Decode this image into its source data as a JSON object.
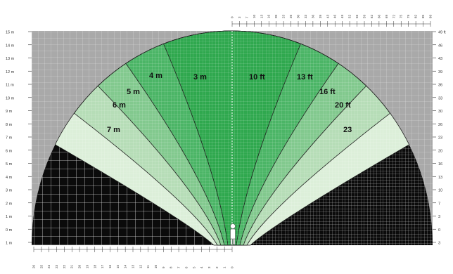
{
  "colors": {
    "background": "#ffffff",
    "panel_gray": "#a9a9a9",
    "black_zone": "#0b0b0b",
    "zone_green_center": "#2fa84e",
    "zone_green_1": "#4bb566",
    "zone_green_2": "#82c98e",
    "zone_green_3": "#b6ddb7",
    "zone_green_4": "#dcefd9",
    "outline": "#1a1a1a",
    "person": "#ffffff"
  },
  "metric_labels": [
    "3 m",
    "4 m",
    "5 m",
    "6 m",
    "7 m"
  ],
  "imperial_labels": [
    "10 ft",
    "13 ft",
    "16 ft",
    "20 ft",
    "23"
  ],
  "left_axis_labels": [
    "15 m",
    "14 m",
    "13 m",
    "12 m",
    "11 m",
    "10 m",
    "9 m",
    "8 m",
    "7 m",
    "6 m",
    "5 m",
    "4 m",
    "3 m",
    "2 m",
    "1 m",
    "0 m",
    "1 m"
  ],
  "right_axis_labels": [
    "49 ft",
    "46",
    "43",
    "39",
    "36",
    "33",
    "30",
    "26",
    "23",
    "20",
    "16",
    "13",
    "10",
    "7",
    "3",
    "0",
    "3"
  ],
  "top_axis_labels": [
    "0",
    "3",
    "7",
    "10",
    "13",
    "16",
    "20",
    "23",
    "26",
    "30",
    "33",
    "36",
    "39",
    "43",
    "46",
    "49",
    "52",
    "56",
    "59",
    "62",
    "66",
    "69",
    "72",
    "75",
    "79",
    "82",
    "85",
    "89"
  ],
  "bottom_axis_labels": [
    "26",
    "25",
    "24",
    "23",
    "22",
    "21",
    "20",
    "19",
    "18",
    "17",
    "16",
    "15",
    "14",
    "13",
    "12",
    "11",
    "10",
    "9",
    "8",
    "7",
    "6",
    "5",
    "4",
    "3",
    "2",
    "1",
    "0"
  ],
  "icons": {
    "person": "person-icon"
  }
}
